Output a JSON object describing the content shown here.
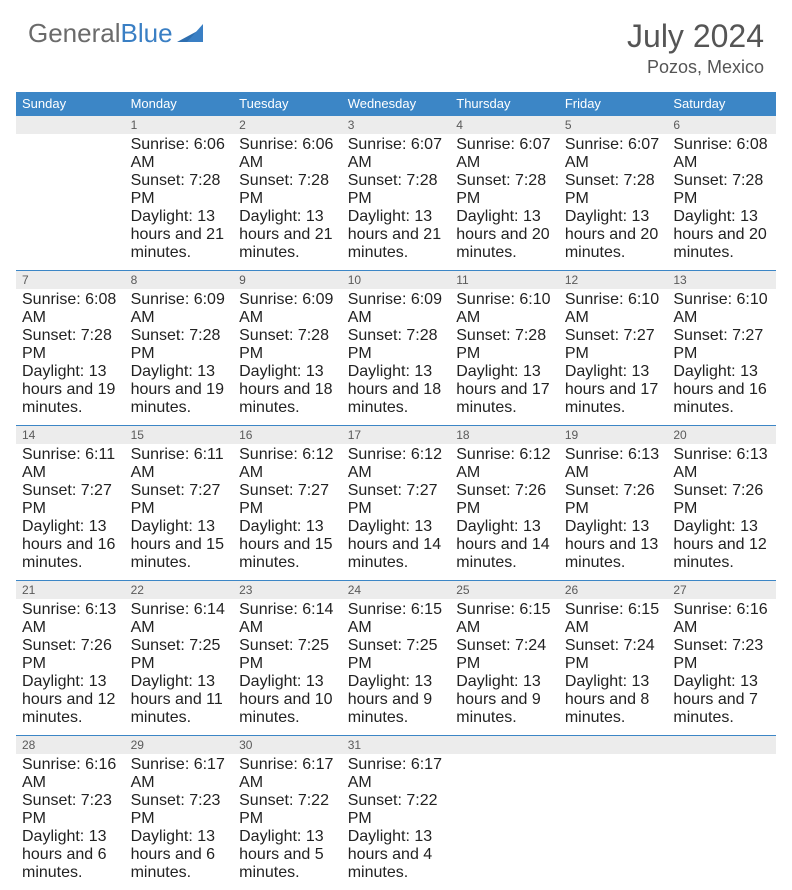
{
  "brand": {
    "part1": "General",
    "part2": "Blue"
  },
  "title": "July 2024",
  "location": "Pozos, Mexico",
  "colors": {
    "header_bg": "#3c86c6",
    "header_text": "#ffffff",
    "daynum_bg": "#ececec",
    "brand_gray": "#6b6b6b",
    "brand_blue": "#3a7fc4",
    "border": "#3c86c6"
  },
  "day_headers": [
    "Sunday",
    "Monday",
    "Tuesday",
    "Wednesday",
    "Thursday",
    "Friday",
    "Saturday"
  ],
  "weeks": [
    {
      "nums": [
        "",
        "1",
        "2",
        "3",
        "4",
        "5",
        "6"
      ],
      "cells": [
        null,
        {
          "sunrise": "Sunrise: 6:06 AM",
          "sunset": "Sunset: 7:28 PM",
          "daylight": "Daylight: 13 hours and 21 minutes."
        },
        {
          "sunrise": "Sunrise: 6:06 AM",
          "sunset": "Sunset: 7:28 PM",
          "daylight": "Daylight: 13 hours and 21 minutes."
        },
        {
          "sunrise": "Sunrise: 6:07 AM",
          "sunset": "Sunset: 7:28 PM",
          "daylight": "Daylight: 13 hours and 21 minutes."
        },
        {
          "sunrise": "Sunrise: 6:07 AM",
          "sunset": "Sunset: 7:28 PM",
          "daylight": "Daylight: 13 hours and 20 minutes."
        },
        {
          "sunrise": "Sunrise: 6:07 AM",
          "sunset": "Sunset: 7:28 PM",
          "daylight": "Daylight: 13 hours and 20 minutes."
        },
        {
          "sunrise": "Sunrise: 6:08 AM",
          "sunset": "Sunset: 7:28 PM",
          "daylight": "Daylight: 13 hours and 20 minutes."
        }
      ]
    },
    {
      "nums": [
        "7",
        "8",
        "9",
        "10",
        "11",
        "12",
        "13"
      ],
      "cells": [
        {
          "sunrise": "Sunrise: 6:08 AM",
          "sunset": "Sunset: 7:28 PM",
          "daylight": "Daylight: 13 hours and 19 minutes."
        },
        {
          "sunrise": "Sunrise: 6:09 AM",
          "sunset": "Sunset: 7:28 PM",
          "daylight": "Daylight: 13 hours and 19 minutes."
        },
        {
          "sunrise": "Sunrise: 6:09 AM",
          "sunset": "Sunset: 7:28 PM",
          "daylight": "Daylight: 13 hours and 18 minutes."
        },
        {
          "sunrise": "Sunrise: 6:09 AM",
          "sunset": "Sunset: 7:28 PM",
          "daylight": "Daylight: 13 hours and 18 minutes."
        },
        {
          "sunrise": "Sunrise: 6:10 AM",
          "sunset": "Sunset: 7:28 PM",
          "daylight": "Daylight: 13 hours and 17 minutes."
        },
        {
          "sunrise": "Sunrise: 6:10 AM",
          "sunset": "Sunset: 7:27 PM",
          "daylight": "Daylight: 13 hours and 17 minutes."
        },
        {
          "sunrise": "Sunrise: 6:10 AM",
          "sunset": "Sunset: 7:27 PM",
          "daylight": "Daylight: 13 hours and 16 minutes."
        }
      ]
    },
    {
      "nums": [
        "14",
        "15",
        "16",
        "17",
        "18",
        "19",
        "20"
      ],
      "cells": [
        {
          "sunrise": "Sunrise: 6:11 AM",
          "sunset": "Sunset: 7:27 PM",
          "daylight": "Daylight: 13 hours and 16 minutes."
        },
        {
          "sunrise": "Sunrise: 6:11 AM",
          "sunset": "Sunset: 7:27 PM",
          "daylight": "Daylight: 13 hours and 15 minutes."
        },
        {
          "sunrise": "Sunrise: 6:12 AM",
          "sunset": "Sunset: 7:27 PM",
          "daylight": "Daylight: 13 hours and 15 minutes."
        },
        {
          "sunrise": "Sunrise: 6:12 AM",
          "sunset": "Sunset: 7:27 PM",
          "daylight": "Daylight: 13 hours and 14 minutes."
        },
        {
          "sunrise": "Sunrise: 6:12 AM",
          "sunset": "Sunset: 7:26 PM",
          "daylight": "Daylight: 13 hours and 14 minutes."
        },
        {
          "sunrise": "Sunrise: 6:13 AM",
          "sunset": "Sunset: 7:26 PM",
          "daylight": "Daylight: 13 hours and 13 minutes."
        },
        {
          "sunrise": "Sunrise: 6:13 AM",
          "sunset": "Sunset: 7:26 PM",
          "daylight": "Daylight: 13 hours and 12 minutes."
        }
      ]
    },
    {
      "nums": [
        "21",
        "22",
        "23",
        "24",
        "25",
        "26",
        "27"
      ],
      "cells": [
        {
          "sunrise": "Sunrise: 6:13 AM",
          "sunset": "Sunset: 7:26 PM",
          "daylight": "Daylight: 13 hours and 12 minutes."
        },
        {
          "sunrise": "Sunrise: 6:14 AM",
          "sunset": "Sunset: 7:25 PM",
          "daylight": "Daylight: 13 hours and 11 minutes."
        },
        {
          "sunrise": "Sunrise: 6:14 AM",
          "sunset": "Sunset: 7:25 PM",
          "daylight": "Daylight: 13 hours and 10 minutes."
        },
        {
          "sunrise": "Sunrise: 6:15 AM",
          "sunset": "Sunset: 7:25 PM",
          "daylight": "Daylight: 13 hours and 9 minutes."
        },
        {
          "sunrise": "Sunrise: 6:15 AM",
          "sunset": "Sunset: 7:24 PM",
          "daylight": "Daylight: 13 hours and 9 minutes."
        },
        {
          "sunrise": "Sunrise: 6:15 AM",
          "sunset": "Sunset: 7:24 PM",
          "daylight": "Daylight: 13 hours and 8 minutes."
        },
        {
          "sunrise": "Sunrise: 6:16 AM",
          "sunset": "Sunset: 7:23 PM",
          "daylight": "Daylight: 13 hours and 7 minutes."
        }
      ]
    },
    {
      "nums": [
        "28",
        "29",
        "30",
        "31",
        "",
        "",
        ""
      ],
      "cells": [
        {
          "sunrise": "Sunrise: 6:16 AM",
          "sunset": "Sunset: 7:23 PM",
          "daylight": "Daylight: 13 hours and 6 minutes."
        },
        {
          "sunrise": "Sunrise: 6:17 AM",
          "sunset": "Sunset: 7:23 PM",
          "daylight": "Daylight: 13 hours and 6 minutes."
        },
        {
          "sunrise": "Sunrise: 6:17 AM",
          "sunset": "Sunset: 7:22 PM",
          "daylight": "Daylight: 13 hours and 5 minutes."
        },
        {
          "sunrise": "Sunrise: 6:17 AM",
          "sunset": "Sunset: 7:22 PM",
          "daylight": "Daylight: 13 hours and 4 minutes."
        },
        null,
        null,
        null
      ]
    }
  ]
}
